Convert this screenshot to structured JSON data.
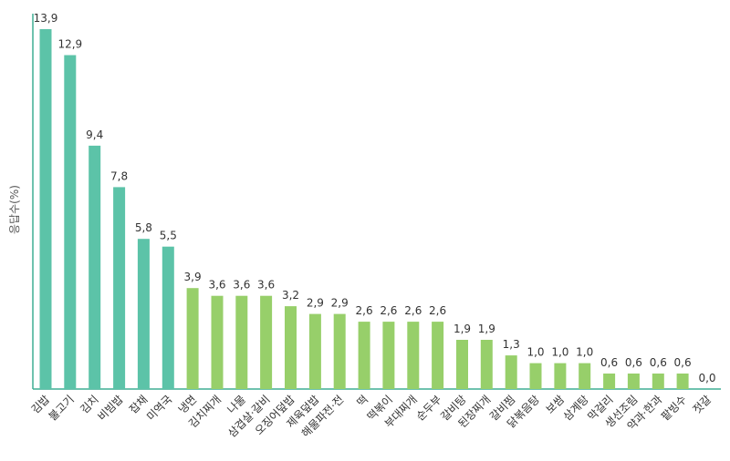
{
  "chart_data": {
    "type": "bar",
    "ylabel": "응답수(%)",
    "ylim": [
      0,
      14.5
    ],
    "grid": false,
    "categories": [
      "김밥",
      "불고기",
      "김치",
      "비빔밥",
      "잡채",
      "미역국",
      "냉면",
      "김치찌개",
      "나물",
      "삼겹살·갈비",
      "오징어덮밥",
      "제육덮밥",
      "해물파전·전",
      "떡",
      "떡볶이",
      "부대찌개",
      "순두부",
      "갈비탕",
      "된장찌개",
      "갈비찜",
      "닭볶음탕",
      "보쌈",
      "삼계탕",
      "막걸리",
      "생선조림",
      "약과·한과",
      "팥빙수",
      "젓갈"
    ],
    "values": [
      13.9,
      12.9,
      9.4,
      7.8,
      5.8,
      5.5,
      3.9,
      3.6,
      3.6,
      3.6,
      3.2,
      2.9,
      2.9,
      2.6,
      2.6,
      2.6,
      2.6,
      1.9,
      1.9,
      1.3,
      1.0,
      1.0,
      1.0,
      0.6,
      0.6,
      0.6,
      0.6,
      0.0
    ],
    "value_labels": [
      "13,9",
      "12,9",
      "9,4",
      "7,8",
      "5,8",
      "5,5",
      "3,9",
      "3,6",
      "3,6",
      "3,6",
      "3,2",
      "2,9",
      "2,9",
      "2,6",
      "2,6",
      "2,6",
      "2,6",
      "1,9",
      "1,9",
      "1,3",
      "1,0",
      "1,0",
      "1,0",
      "0,6",
      "0,6",
      "0,6",
      "0,6",
      "0,0"
    ],
    "colors": {
      "top": "#5cc3a8",
      "rest": "#97cf6a",
      "axis": "#3fae94"
    },
    "top_count": 6
  }
}
